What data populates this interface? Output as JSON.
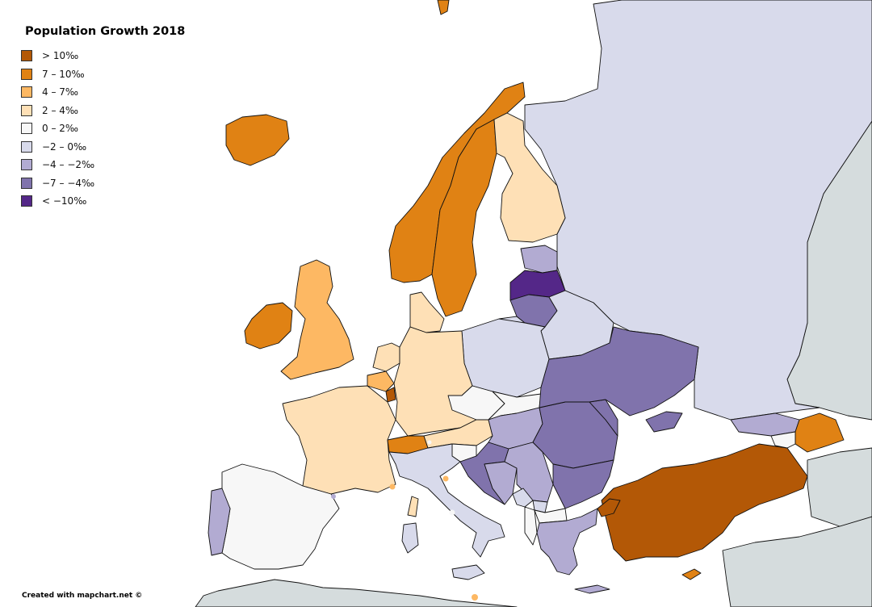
{
  "title": "Population Growth 2018",
  "legend": [
    {
      "label": "> 10‰",
      "color": "#b35806"
    },
    {
      "label": "7 – 10‰",
      "color": "#e08214"
    },
    {
      "label": "4 – 7‰",
      "color": "#fdb863"
    },
    {
      "label": "2 – 4‰",
      "color": "#fee0b6"
    },
    {
      "label": "0 – 2‰",
      "color": "#f7f7f7"
    },
    {
      "label": "−2 – 0‰",
      "color": "#d8daeb"
    },
    {
      "label": "−4 – −2‰",
      "color": "#b2abd2"
    },
    {
      "label": "−7 – −4‰",
      "color": "#8073ac"
    },
    {
      "label": "< −10‰",
      "color": "#542788"
    }
  ],
  "credit": "Created with mapchart.net ©",
  "colors": {
    "no_data": "#d5dcdd",
    "sea": "#ffffff"
  }
}
